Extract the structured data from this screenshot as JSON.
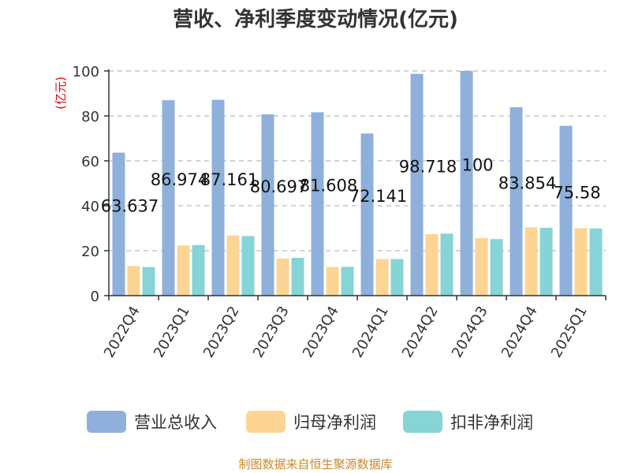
{
  "chart_data": {
    "type": "bar",
    "title": "营收、净利季度变动情况(亿元)",
    "y_unit_label": "(亿元)",
    "categories": [
      "2022Q4",
      "2023Q1",
      "2023Q2",
      "2023Q3",
      "2023Q4",
      "2024Q1",
      "2024Q2",
      "2024Q3",
      "2024Q4",
      "2025Q1"
    ],
    "series": [
      {
        "name": "营业总收入",
        "color": "#8eb0db",
        "values": [
          63.637,
          86.974,
          87.161,
          80.697,
          81.608,
          72.141,
          98.718,
          100,
          83.854,
          75.58
        ],
        "labels": [
          "63.637",
          "86.974",
          "87.161",
          "80.697",
          "81.608",
          "72.141",
          "98.718",
          "100",
          "83.854",
          "75.58"
        ]
      },
      {
        "name": "归母净利润",
        "color": "#fcd594",
        "values": [
          13.2,
          22.3,
          26.8,
          16.5,
          12.8,
          16.3,
          27.4,
          25.6,
          30.4,
          30.0
        ]
      },
      {
        "name": "扣非净利润",
        "color": "#86d4d6",
        "values": [
          12.7,
          22.5,
          26.5,
          16.8,
          12.8,
          16.3,
          27.6,
          25.2,
          30.2,
          29.9
        ]
      }
    ],
    "ylim": [
      0,
      100
    ],
    "yticks": [
      "0",
      "20",
      "40",
      "60",
      "80",
      "100"
    ],
    "grid": true,
    "legend_position": "bottom"
  },
  "source": "制图数据来自恒生聚源数据库"
}
